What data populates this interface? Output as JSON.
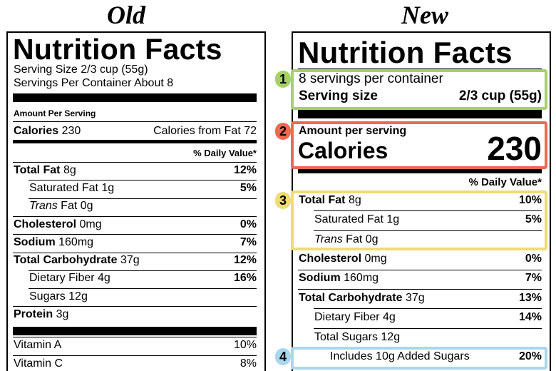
{
  "old": {
    "heading": "Old",
    "title": "Nutrition Facts",
    "serving_size": "Serving Size 2/3 cup (55g)",
    "servings": "Servings Per Container About 8",
    "amount": "Amount Per Serving",
    "calories_label": "Calories",
    "calories_value": "230",
    "calories_from_fat": "Calories from Fat 72",
    "daily_value": "% Daily Value*",
    "rows": [
      {
        "name": "Total Fat",
        "amount": "8g",
        "dv": "12%"
      },
      {
        "name": "Saturated Fat",
        "amount": "1g",
        "dv": "5%"
      },
      {
        "name_italic": "Trans",
        "name": "Fat",
        "amount": "0g"
      },
      {
        "name": "Cholesterol",
        "amount": "0mg",
        "dv": "0%"
      },
      {
        "name": "Sodium",
        "amount": "160mg",
        "dv": "7%"
      },
      {
        "name": "Total Carbohydrate",
        "amount": "37g",
        "dv": "12%"
      },
      {
        "name": "Dietary Fiber",
        "amount": "4g",
        "dv": "16%"
      },
      {
        "name": "Sugars",
        "amount": "12g"
      },
      {
        "name": "Protein",
        "amount": "3g"
      }
    ],
    "vitamins": [
      {
        "name": "Vitamin A",
        "dv": "10%"
      },
      {
        "name": "Vitamin C",
        "dv": "8%"
      }
    ]
  },
  "new": {
    "heading": "New",
    "title": "Nutrition Facts",
    "servings": "8 servings per container",
    "serving_size_label": "Serving size",
    "serving_size_value": "2/3 cup (55g)",
    "amount": "Amount per serving",
    "calories_label": "Calories",
    "calories_value": "230",
    "daily_value": "% Daily Value*",
    "rows": [
      {
        "name": "Total Fat",
        "amount": "8g",
        "dv": "10%"
      },
      {
        "name": "Saturated Fat",
        "amount": "1g",
        "dv": "5%"
      },
      {
        "name_italic": "Trans",
        "name": "Fat",
        "amount": "0g"
      },
      {
        "name": "Cholesterol",
        "amount": "0mg",
        "dv": "0%"
      },
      {
        "name": "Sodium",
        "amount": "160mg",
        "dv": "7%"
      },
      {
        "name": "Total Carbohydrate",
        "amount": "37g",
        "dv": "13%"
      },
      {
        "name": "Dietary Fiber",
        "amount": "4g",
        "dv": "14%"
      },
      {
        "name": "Total Sugars",
        "amount": "12g"
      },
      {
        "name": "Includes 10g Added Sugars",
        "dv": "20%"
      }
    ],
    "highlights": [
      "1",
      "2",
      "3",
      "4"
    ]
  }
}
